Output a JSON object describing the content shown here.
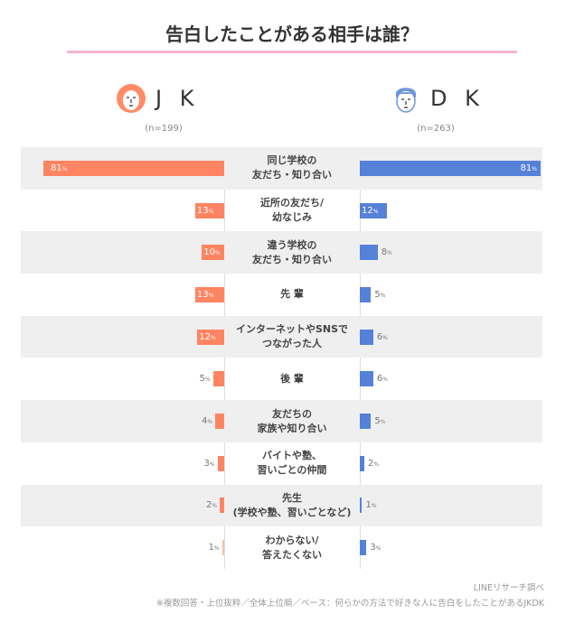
{
  "chart_data": {
    "type": "bar",
    "title": "告白したことがある相手は誰？",
    "categories": [
      "同じ学校の\n友だち・知り合い",
      "近所の友だち/\n幼なじみ",
      "違う学校の\n友だち・知り合い",
      "先 輩",
      "インターネットやSNSで\nつながった人",
      "後 輩",
      "友だちの\n家族や知り合い",
      "バイトや塾、\n習いごとの仲間",
      "先生\n(学校や塾、習いごとなど)",
      "わからない/\n答えたくない"
    ],
    "series": [
      {
        "name": "J K",
        "n": "(n=199)",
        "color": "#ff8461",
        "values": [
          81,
          13,
          10,
          13,
          12,
          5,
          4,
          3,
          2,
          1
        ]
      },
      {
        "name": "D K",
        "n": "(n=263)",
        "color": "#5581d9",
        "values": [
          81,
          12,
          8,
          5,
          6,
          6,
          5,
          2,
          1,
          3
        ]
      }
    ],
    "unit": "%",
    "xlim": [
      0,
      81
    ]
  },
  "footer": {
    "source": "LINEリサーチ調べ",
    "note": "※複数回答・上位抜粋／全体上位順／ベース：何らかの方法で好きな人に告白をしたことがあるJKDK"
  },
  "icons": {
    "jk": "girl-face-icon",
    "dk": "boy-face-icon"
  }
}
